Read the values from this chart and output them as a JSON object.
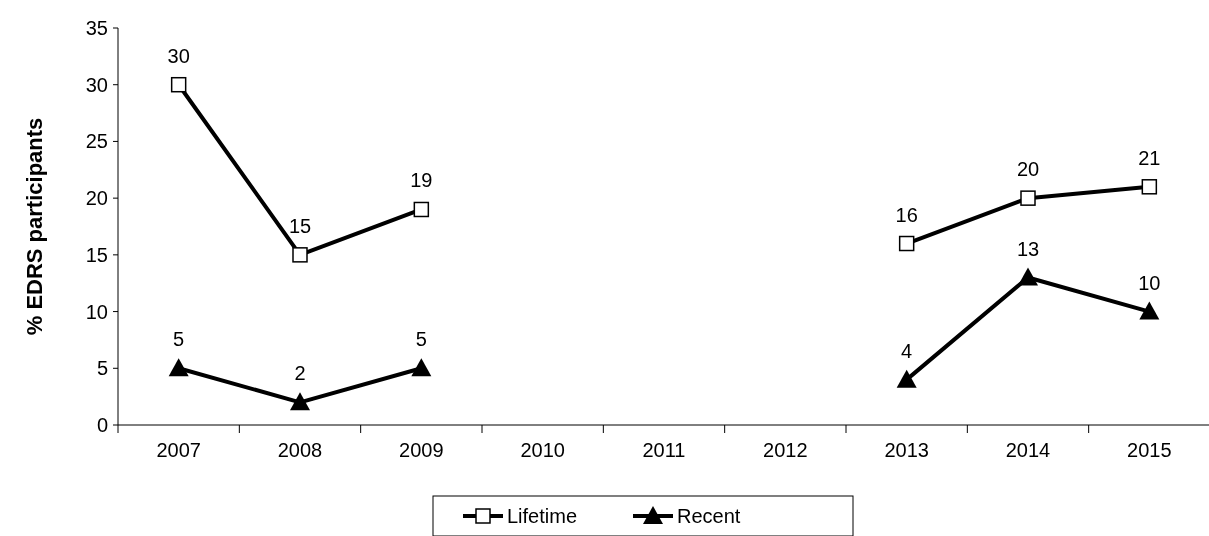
{
  "chart_data": {
    "type": "line",
    "ylabel": "% EDRS participants",
    "categories": [
      "2007",
      "2008",
      "2009",
      "2010",
      "2011",
      "2012",
      "2013",
      "2014",
      "2015"
    ],
    "series": [
      {
        "name": "Lifetime",
        "color": "#000000",
        "marker": "square",
        "values": [
          30,
          15,
          19,
          null,
          null,
          null,
          16,
          20,
          21
        ]
      },
      {
        "name": "Recent",
        "color": "#000000",
        "marker": "triangle",
        "values": [
          5,
          2,
          5,
          null,
          null,
          null,
          4,
          13,
          10
        ]
      }
    ],
    "ylim": [
      0,
      35
    ],
    "yticks": [
      0,
      5,
      10,
      15,
      20,
      25,
      30,
      35
    ],
    "data_labels": true,
    "legend": "bottom",
    "grid": false
  }
}
